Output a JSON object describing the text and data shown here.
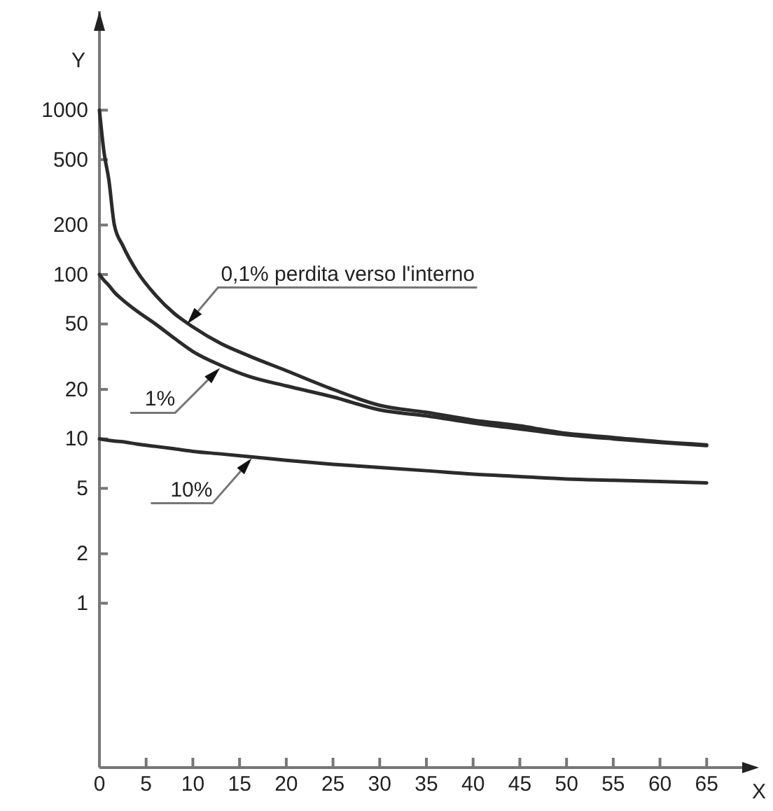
{
  "chart_data": {
    "type": "line",
    "xlabel": "X",
    "ylabel": "Y",
    "log": "y",
    "grid": false,
    "marker": "none",
    "line_style": "solid",
    "xlim": [
      0,
      70
    ],
    "xticks": [
      0,
      5,
      10,
      15,
      20,
      25,
      30,
      35,
      40,
      45,
      50,
      55,
      60,
      65
    ],
    "ylim": [
      0.1,
      4000
    ],
    "yticks": [
      1,
      2,
      5,
      10,
      20,
      50,
      100,
      200,
      500,
      1000
    ],
    "x": [
      0,
      0.5,
      1,
      1.6,
      2.5,
      4,
      6,
      8,
      10,
      13,
      16,
      20,
      25,
      30,
      35,
      40,
      45,
      50,
      55,
      60,
      65
    ],
    "series": [
      {
        "color": "#2b2b2b",
        "values": [
          1000,
          550,
          380,
          200,
          150,
          105,
          75,
          58,
          48,
          38,
          32,
          26,
          20,
          16,
          14.5,
          13,
          12,
          10.8,
          10.2,
          9.6,
          9.2
        ]
      },
      {
        "color": "#2b2b2b",
        "values": [
          100,
          92,
          86,
          78,
          70,
          60,
          50,
          41,
          34,
          28,
          24,
          21,
          18,
          15,
          13.8,
          12.5,
          11.5,
          10.6,
          10,
          9.5,
          9.1
        ]
      },
      {
        "color": "#2b2b2b",
        "values": [
          10,
          9.9,
          9.8,
          9.7,
          9.6,
          9.3,
          9.0,
          8.7,
          8.4,
          8.1,
          7.8,
          7.4,
          7.0,
          6.7,
          6.4,
          6.1,
          5.9,
          5.7,
          5.6,
          5.5,
          5.4
        ]
      }
    ],
    "annotations": [
      {
        "text": "0,1% perdita verso l'interno",
        "x": 9.4,
        "y": 50
      },
      {
        "text": "1%",
        "x": 12.9,
        "y": 27
      },
      {
        "text": "10%",
        "x": 16.3,
        "y": 7.6
      }
    ]
  }
}
